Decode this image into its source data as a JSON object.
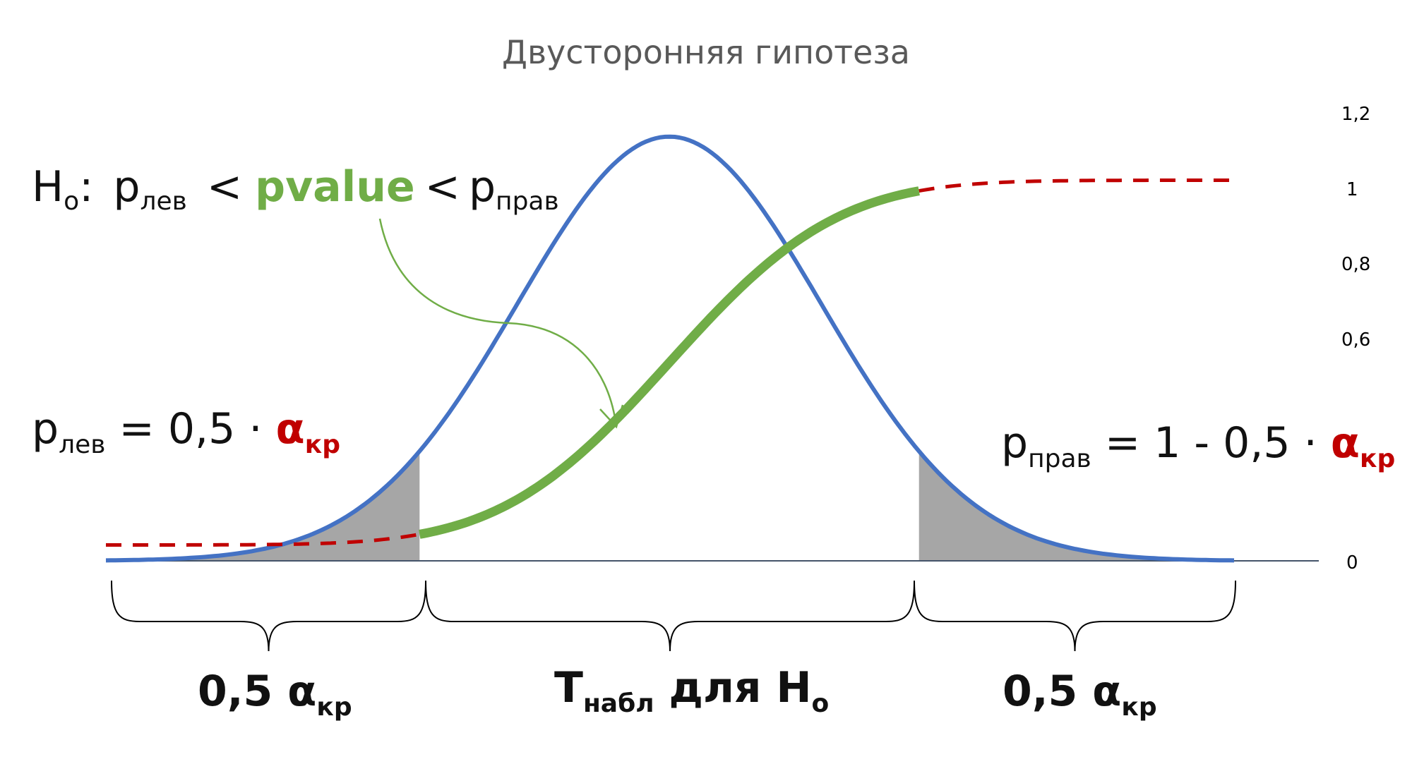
{
  "title": "Двусторонняя гипотеза",
  "colors": {
    "density": "#4472C4",
    "cdf": "#70AD47",
    "cdf_tail": "#C00000",
    "alpha": "#C00000",
    "t_obs": "#002060",
    "tail_fill": "#A6A6A6",
    "axis": "#44546A",
    "title": "#595959"
  },
  "y_axis": {
    "ticks": [
      "1,2",
      "1",
      "0,8",
      "0,6",
      "0"
    ]
  },
  "hypothesis": {
    "h_main": "H",
    "h_sub": "o",
    "colon": ":",
    "p_left_main": "p",
    "p_left_sub": "лев",
    "lt1": "<",
    "pvalue": "pvalue",
    "lt2": "<",
    "p_right_main": "p",
    "p_right_sub": "прав"
  },
  "left_formula": {
    "p_main": "p",
    "p_sub": "лев",
    "expr": " = 0,5 · ",
    "alpha_main": "α",
    "alpha_sub": "кр"
  },
  "right_formula": {
    "p_main": "p",
    "p_sub": "прав",
    "expr": " = 1 - 0,5 · ",
    "alpha_main": "α",
    "alpha_sub": "кр"
  },
  "brace_labels": {
    "left": {
      "main": "0,5 α",
      "sub": "кр"
    },
    "middle": {
      "main": "T",
      "sub": "набл",
      "rest": " для H",
      "sub2": "o"
    },
    "right": {
      "main": "0,5 α",
      "sub": "кр"
    }
  },
  "chart_data": {
    "type": "line",
    "series": [
      {
        "kind": "density",
        "shape": "normal",
        "peak": 1.07,
        "critical_quantiles": [
          -1.645,
          1.645
        ]
      },
      {
        "kind": "cdf",
        "shape": "normal",
        "start": 0.04,
        "end": 0.96
      }
    ],
    "ylim": [
      0,
      1.2
    ],
    "shaded_tails": [
      "left",
      "right"
    ]
  }
}
